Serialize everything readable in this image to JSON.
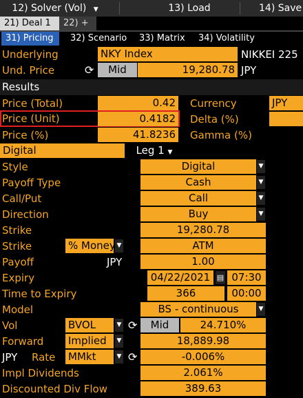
{
  "toolbar": {
    "solver": "12) Solver (Vol)",
    "load": "13) Load",
    "save": "14) Save"
  },
  "deal_tabs": {
    "deal1": "21) Deal 1",
    "add": "22) +"
  },
  "tabs": [
    "31) Pricing",
    "32) Scenario",
    "33) Matrix",
    "34) Volatility"
  ],
  "underlying": {
    "label": "Underlying",
    "value": "NKY Index",
    "desc": "NIKKEI 225"
  },
  "und_price": {
    "label": "Und. Price",
    "source": "Mid",
    "value": "19,280.78",
    "ccy": "JPY"
  },
  "results": {
    "title": "Results",
    "price_total": {
      "label": "Price (Total)",
      "value": "0.42"
    },
    "price_unit": {
      "label": "Price (Unit)",
      "value": "0.4182"
    },
    "price_pct": {
      "label": "Price (%)",
      "value": "41.8236"
    },
    "currency": {
      "label": "Currency",
      "value": "JPY"
    },
    "delta": {
      "label": "Delta (%)",
      "value": ""
    },
    "gamma": {
      "label": "Gamma (%)",
      "value": ""
    }
  },
  "leg": {
    "name": "Digital",
    "selector": "Leg 1"
  },
  "fields": {
    "style": {
      "label": "Style",
      "value": "Digital"
    },
    "payoff_type": {
      "label": "Payoff Type",
      "value": "Cash"
    },
    "call_put": {
      "label": "Call/Put",
      "value": "Call"
    },
    "direction": {
      "label": "Direction",
      "value": "Buy"
    },
    "strike": {
      "label": "Strike",
      "value": "19,280.78"
    },
    "strike_mode": {
      "label": "Strike",
      "mode": "% Money",
      "value": "ATM"
    },
    "payoff": {
      "label": "Payoff",
      "ccy": "JPY",
      "value": "1.00"
    },
    "expiry": {
      "label": "Expiry",
      "date": "04/22/2021",
      "time": "07:30"
    },
    "time_to_expiry": {
      "label": "Time to Expiry",
      "days": "366",
      "time": "00:00"
    },
    "model": {
      "label": "Model",
      "value": "BS - continuous"
    },
    "vol": {
      "label": "Vol",
      "source": "BVOL",
      "side": "Mid",
      "value": "24.710%"
    },
    "forward": {
      "label": "Forward",
      "source": "Implied",
      "value": "18,889.98"
    },
    "rate": {
      "ccy": "JPY",
      "label": "Rate",
      "source": "MMkt",
      "value": "-0.006%"
    },
    "impl_div": {
      "label": "Impl Dividends",
      "value": "2.061%"
    },
    "disc_div": {
      "label": "Discounted Div Flow",
      "value": "389.63"
    }
  }
}
